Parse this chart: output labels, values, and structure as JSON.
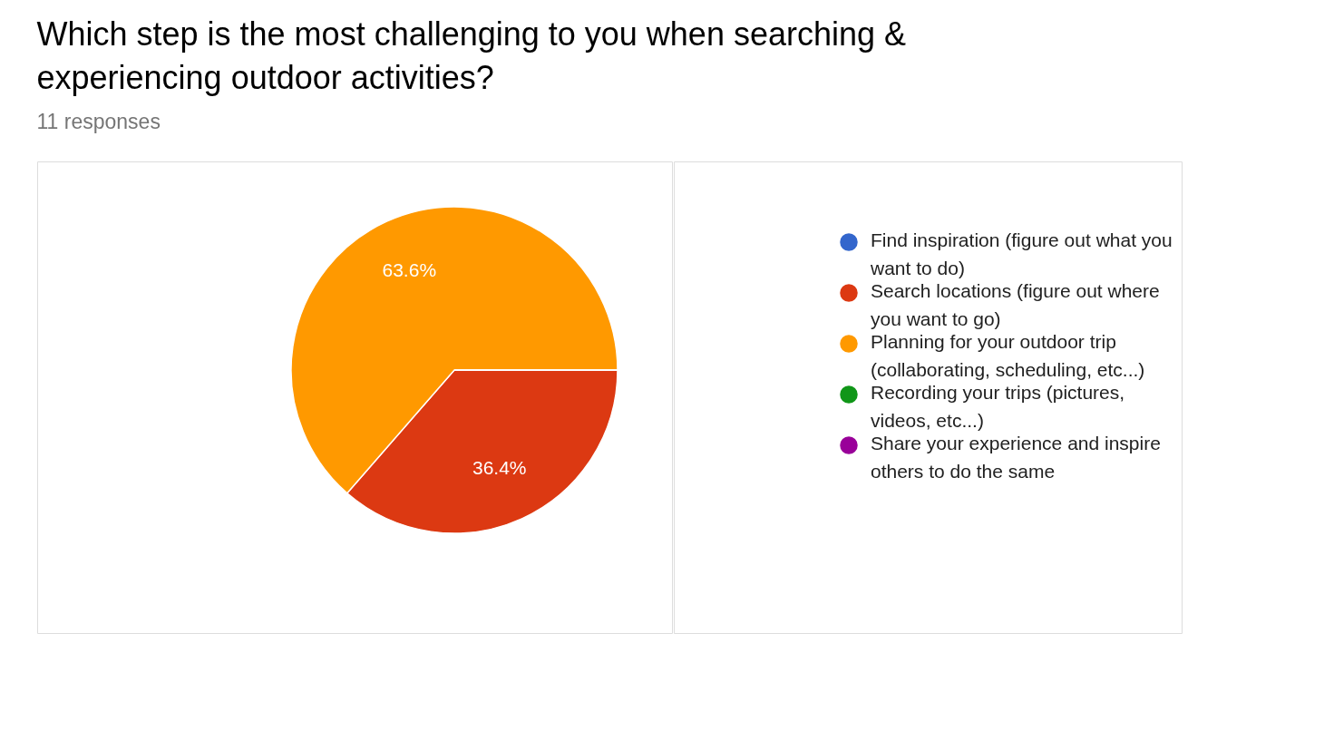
{
  "chart_data": {
    "type": "pie",
    "title": "Which step is the most challenging to you when searching & experiencing outdoor activities?",
    "subtitle": "11 responses",
    "categories": [
      "Find inspiration (figure out what you want to do)",
      "Search locations (figure out where you want to go)",
      "Planning for your outdoor trip (collaborating, scheduling, etc...)",
      "Recording your trips (pictures, videos, etc...)",
      "Share your experience and inspire others to do the same"
    ],
    "values": [
      0,
      36.4,
      63.6,
      0,
      0
    ],
    "colors": [
      "#3366cc",
      "#dc3912",
      "#ff9900",
      "#109618",
      "#990099"
    ],
    "value_labels": [
      null,
      "36.4%",
      "63.6%",
      null,
      null
    ],
    "legend": "right"
  }
}
